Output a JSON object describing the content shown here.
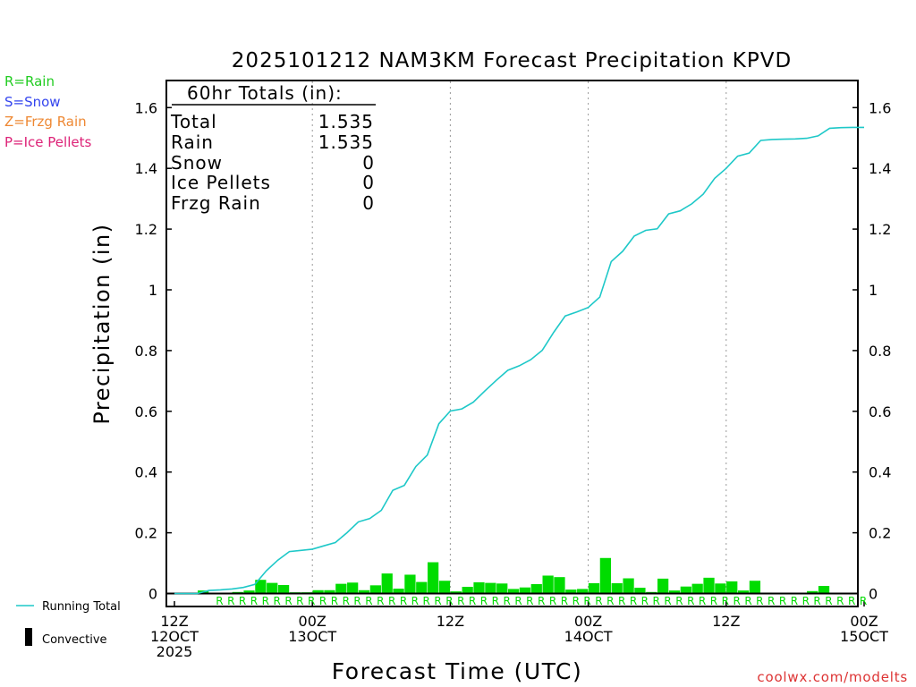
{
  "chart_data": {
    "type": "bar+line",
    "title": "2025101212 NAM3KM Forecast Precipitation KPVD",
    "xlabel": "Forecast Time (UTC)",
    "ylabel": "Precipitation (in)",
    "ylim": [
      0,
      1.7
    ],
    "yticks": [
      0,
      0.2,
      0.4,
      0.6,
      0.8,
      1,
      1.2,
      1.4,
      1.6
    ],
    "ytick_labels": [
      "0",
      "0.2",
      "0.4",
      "0.6",
      "0.8",
      "1",
      "1.2",
      "1.4",
      "1.6"
    ],
    "xlim": [
      0,
      60
    ],
    "xticks": [
      {
        "hour": 0,
        "lines": [
          "12Z",
          "12OCT",
          "2025"
        ]
      },
      {
        "hour": 12,
        "lines": [
          "00Z",
          "13OCT"
        ]
      },
      {
        "hour": 24,
        "lines": [
          "12Z"
        ]
      },
      {
        "hour": 36,
        "lines": [
          "00Z",
          "14OCT"
        ]
      },
      {
        "hour": 48,
        "lines": [
          "12Z"
        ]
      },
      {
        "hour": 60,
        "lines": [
          "00Z",
          "15OCT"
        ]
      }
    ],
    "vertical_gridlines_hours": [
      12,
      24,
      36,
      48
    ],
    "series": [
      {
        "name": "Running Total",
        "type": "line",
        "color": "#1ec8c8",
        "hours": [
          1,
          2,
          3,
          4,
          5,
          6,
          7,
          8,
          9,
          10,
          11,
          12,
          13,
          14,
          15,
          16,
          17,
          18,
          19,
          20,
          21,
          22,
          23,
          24,
          25,
          26,
          27,
          28,
          29,
          30,
          31,
          32,
          33,
          34,
          35,
          36,
          37,
          38,
          39,
          40,
          41,
          42,
          43,
          44,
          45,
          46,
          47,
          48,
          49,
          50,
          51,
          52,
          53,
          54,
          55,
          56,
          57,
          58,
          59,
          60
        ],
        "values": [
          0.0,
          0.0,
          0.01,
          0.012,
          0.015,
          0.02,
          0.03,
          0.075,
          0.11,
          0.138,
          0.142,
          0.146,
          0.157,
          0.168,
          0.2,
          0.236,
          0.247,
          0.274,
          0.34,
          0.356,
          0.418,
          0.456,
          0.559,
          0.601,
          0.608,
          0.63,
          0.667,
          0.702,
          0.735,
          0.75,
          0.77,
          0.801,
          0.86,
          0.914,
          0.927,
          0.942,
          0.976,
          1.093,
          1.127,
          1.177,
          1.196,
          1.201,
          1.25,
          1.26,
          1.283,
          1.315,
          1.367,
          1.4,
          1.44,
          1.45,
          1.492,
          1.495,
          1.496,
          1.497,
          1.499,
          1.507,
          1.532,
          1.534,
          1.535,
          1.535
        ]
      },
      {
        "name": "Rain",
        "type": "bar",
        "color": "#00dc00",
        "hours": [
          1,
          2,
          3,
          4,
          5,
          6,
          7,
          8,
          9,
          10,
          11,
          12,
          13,
          14,
          15,
          16,
          17,
          18,
          19,
          20,
          21,
          22,
          23,
          24,
          25,
          26,
          27,
          28,
          29,
          30,
          31,
          32,
          33,
          34,
          35,
          36,
          37,
          38,
          39,
          40,
          41,
          42,
          43,
          44,
          45,
          46,
          47,
          48,
          49,
          50,
          51,
          52,
          53,
          54,
          55,
          56,
          57,
          58,
          59,
          60
        ],
        "values": [
          0.0,
          0.0,
          0.01,
          0.002,
          0.003,
          0.005,
          0.01,
          0.045,
          0.035,
          0.028,
          0.004,
          0.004,
          0.011,
          0.011,
          0.032,
          0.036,
          0.011,
          0.027,
          0.066,
          0.016,
          0.062,
          0.038,
          0.103,
          0.042,
          0.007,
          0.022,
          0.037,
          0.035,
          0.033,
          0.015,
          0.02,
          0.031,
          0.059,
          0.054,
          0.013,
          0.015,
          0.034,
          0.117,
          0.034,
          0.05,
          0.019,
          0.005,
          0.049,
          0.01,
          0.023,
          0.032,
          0.052,
          0.033,
          0.04,
          0.01,
          0.042,
          0.003,
          0.001,
          0.001,
          0.002,
          0.008,
          0.025,
          0.002,
          0.001,
          0.0
        ]
      }
    ],
    "convective_values": [],
    "ptype_row": {
      "color": "#00dc00",
      "first_hour": 4,
      "last_hour": 60,
      "codes": [
        "R",
        "R",
        "R",
        "R",
        "R",
        "R",
        "R",
        "R",
        "R",
        "R",
        "R",
        "R",
        "R",
        "R",
        "R",
        "R",
        "R",
        "R",
        "R",
        "R",
        "R",
        "R",
        "R",
        "R",
        "R",
        "R",
        "R",
        "R",
        "R",
        "R",
        "R",
        "R",
        "R",
        "R",
        "R",
        "R",
        "R",
        "R",
        "R",
        "R",
        "R",
        "R",
        "R",
        "R",
        "R",
        "R",
        "R",
        "R",
        "R",
        "R",
        "R",
        "R",
        "R",
        "R",
        "R",
        "R",
        "R"
      ]
    }
  },
  "legend_top": [
    {
      "text": "R=Rain",
      "color": "#22cc22"
    },
    {
      "text": "S=Snow",
      "color": "#3344ee"
    },
    {
      "text": "Z=Frzg Rain",
      "color": "#ee8833"
    },
    {
      "text": "P=Ice Pellets",
      "color": "#dd2277"
    }
  ],
  "legend_bottom": {
    "running_total": "Running Total",
    "convective": "Convective"
  },
  "totals": {
    "header": "60hr Totals (in):",
    "rows": [
      {
        "label": "Total",
        "value": "1.535"
      },
      {
        "label": "Rain",
        "value": "1.535"
      },
      {
        "label": "Snow",
        "value": "0"
      },
      {
        "label": "Ice Pellets",
        "value": "0"
      },
      {
        "label": "Frzg Rain",
        "value": "0"
      }
    ]
  },
  "credit": "coolwx.com/modelts"
}
